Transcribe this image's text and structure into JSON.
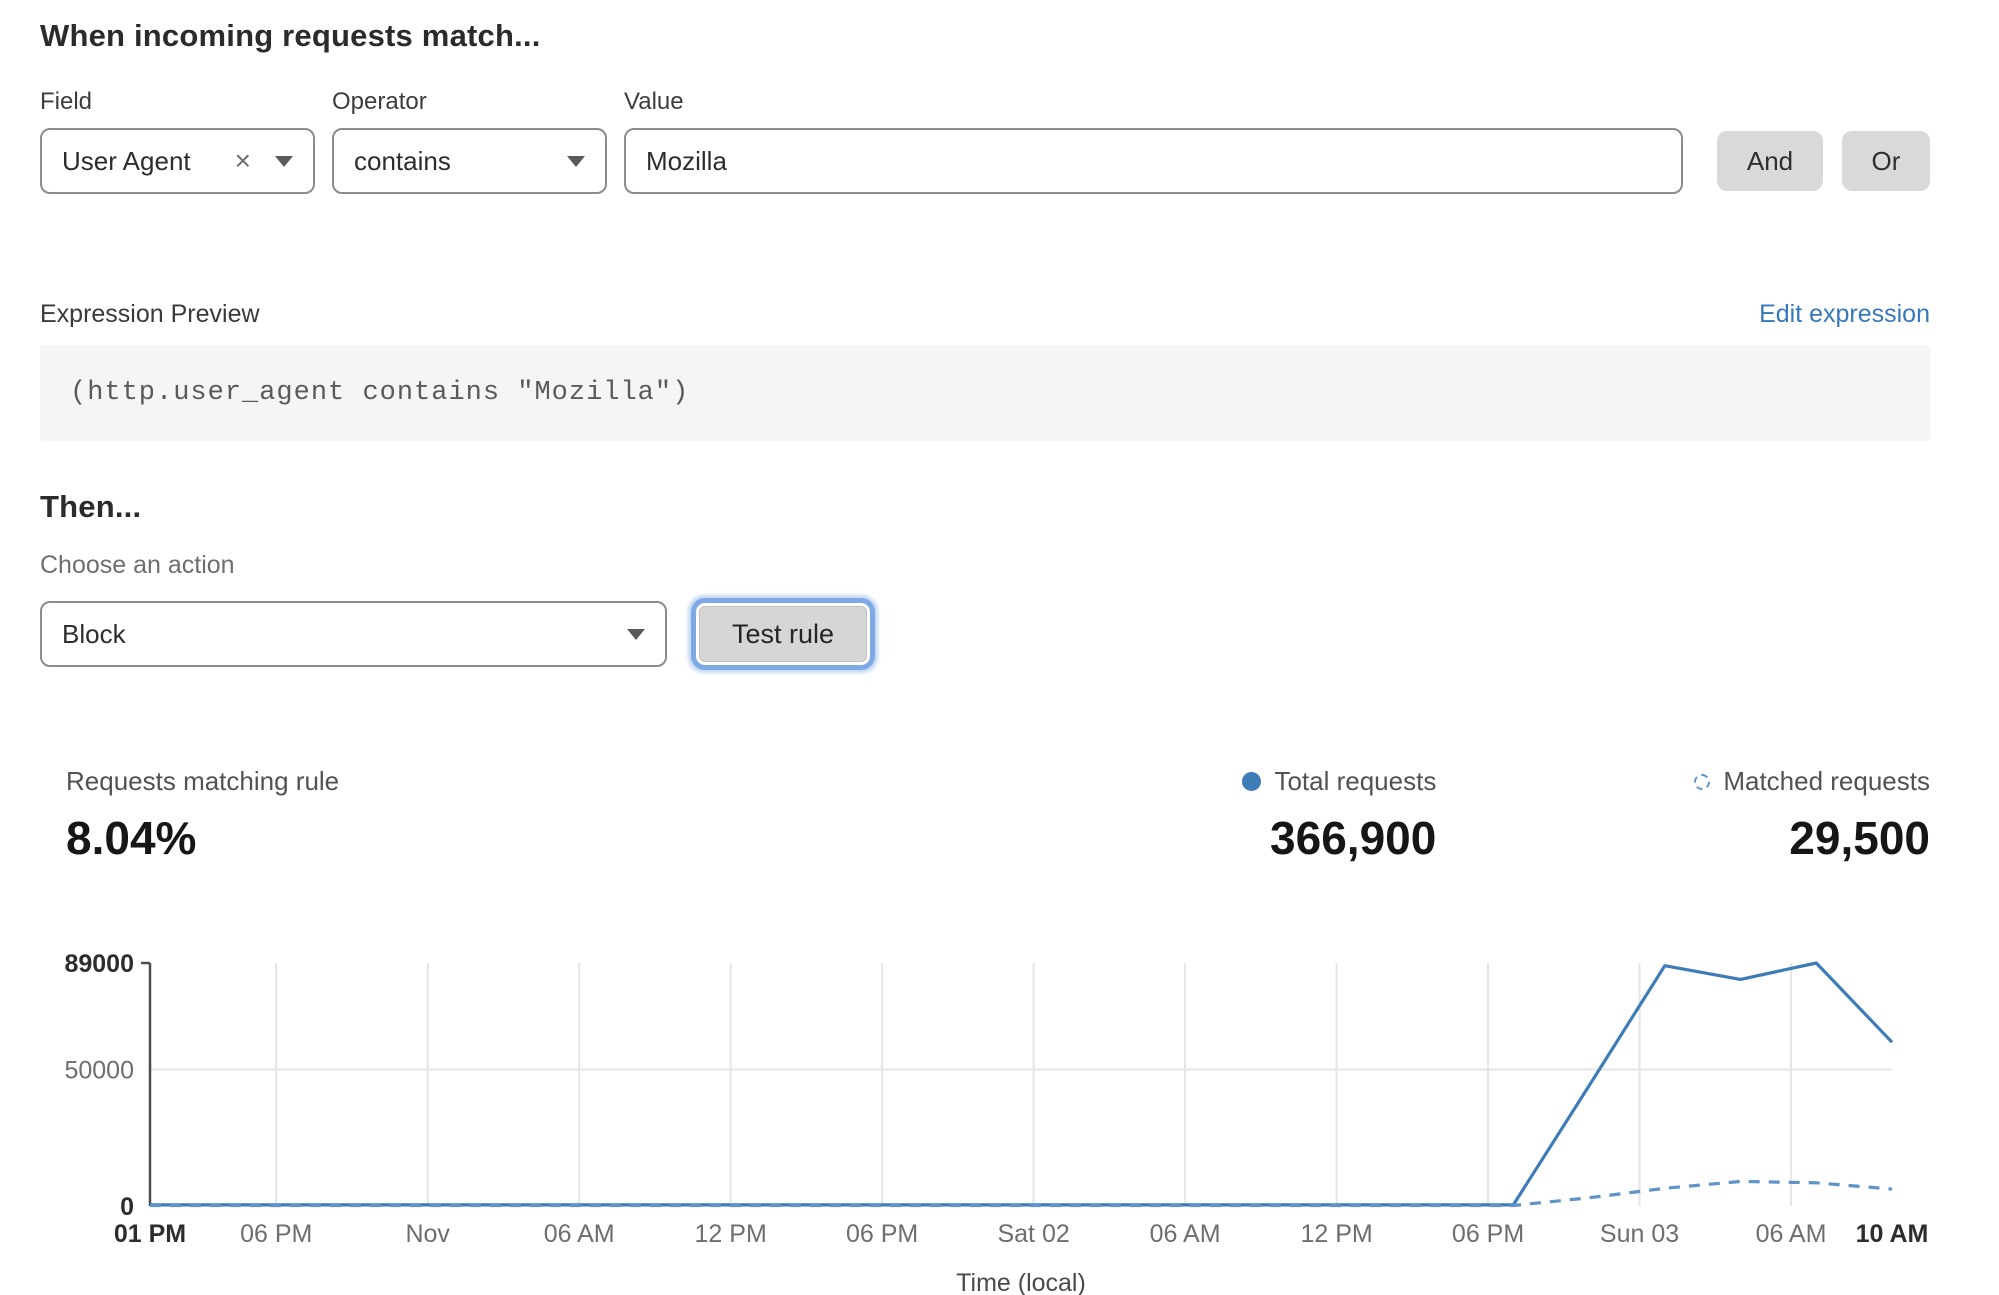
{
  "header": {
    "title": "When incoming requests match..."
  },
  "rule_builder": {
    "field": {
      "label": "Field",
      "value": "User Agent",
      "clear_icon": "×"
    },
    "operator": {
      "label": "Operator",
      "value": "contains"
    },
    "value": {
      "label": "Value",
      "value": "Mozilla"
    },
    "and_label": "And",
    "or_label": "Or"
  },
  "expression": {
    "label": "Expression Preview",
    "edit_link": "Edit expression",
    "code": "(http.user_agent contains \"Mozilla\")"
  },
  "action": {
    "heading": "Then...",
    "choose_label": "Choose an action",
    "selected": "Block",
    "test_button": "Test rule"
  },
  "stats": {
    "matching": {
      "label": "Requests matching rule",
      "value": "8.04%"
    },
    "total": {
      "label": "Total requests",
      "value": "366,900"
    },
    "matched": {
      "label": "Matched requests",
      "value": "29,500"
    }
  },
  "colors": {
    "line_solid": "#3e7cb8",
    "line_dashed": "#5f93c9",
    "link_blue": "#3778bc",
    "grid": "#e5e5e5",
    "axis": "#4d4d4d",
    "tick": "#6e6e6e",
    "tick_bold": "#2d2d2d"
  },
  "chart_data": {
    "type": "line",
    "title": "",
    "xlabel": "Time (local)",
    "ylabel": "",
    "ylim": [
      0,
      89000
    ],
    "x_unit": "hours from first tick",
    "x_range_hours": [
      0,
      69
    ],
    "grid": "vertical at each time tick, horizontal at 50000",
    "legend_position": "above chart, right side",
    "yticks": [
      {
        "label": "89000",
        "value": 89000,
        "bold": true,
        "gridline": false
      },
      {
        "label": "50000",
        "value": 50000,
        "bold": false,
        "gridline": true
      },
      {
        "label": "0",
        "value": 0,
        "bold": true,
        "gridline": false
      }
    ],
    "xticks": [
      {
        "label": "01 PM",
        "hour": 0,
        "bold": true
      },
      {
        "label": "06 PM",
        "hour": 5,
        "bold": false
      },
      {
        "label": "Nov",
        "hour": 11,
        "bold": false
      },
      {
        "label": "06 AM",
        "hour": 17,
        "bold": false
      },
      {
        "label": "12 PM",
        "hour": 23,
        "bold": false
      },
      {
        "label": "06 PM",
        "hour": 29,
        "bold": false
      },
      {
        "label": "Sat 02",
        "hour": 35,
        "bold": false
      },
      {
        "label": "06 AM",
        "hour": 41,
        "bold": false
      },
      {
        "label": "12 PM",
        "hour": 47,
        "bold": false
      },
      {
        "label": "06 PM",
        "hour": 53,
        "bold": false
      },
      {
        "label": "Sun 03",
        "hour": 59,
        "bold": false
      },
      {
        "label": "06 AM",
        "hour": 65,
        "bold": false
      },
      {
        "label": "10 AM",
        "hour": 69,
        "bold": true
      }
    ],
    "series": [
      {
        "name": "Total requests",
        "style": "solid",
        "points": [
          [
            0,
            400
          ],
          [
            6,
            400
          ],
          [
            12,
            400
          ],
          [
            18,
            400
          ],
          [
            24,
            400
          ],
          [
            30,
            400
          ],
          [
            36,
            400
          ],
          [
            42,
            400
          ],
          [
            48,
            400
          ],
          [
            54,
            400
          ],
          [
            57,
            44000
          ],
          [
            60,
            88000
          ],
          [
            63,
            83000
          ],
          [
            66,
            89000
          ],
          [
            69,
            60000
          ]
        ]
      },
      {
        "name": "Matched requests",
        "style": "dashed",
        "points": [
          [
            0,
            200
          ],
          [
            6,
            200
          ],
          [
            12,
            200
          ],
          [
            18,
            200
          ],
          [
            24,
            200
          ],
          [
            30,
            200
          ],
          [
            36,
            200
          ],
          [
            42,
            200
          ],
          [
            48,
            200
          ],
          [
            54,
            200
          ],
          [
            57,
            3000
          ],
          [
            60,
            6500
          ],
          [
            63,
            9000
          ],
          [
            66,
            8500
          ],
          [
            69,
            6200
          ]
        ]
      }
    ]
  }
}
